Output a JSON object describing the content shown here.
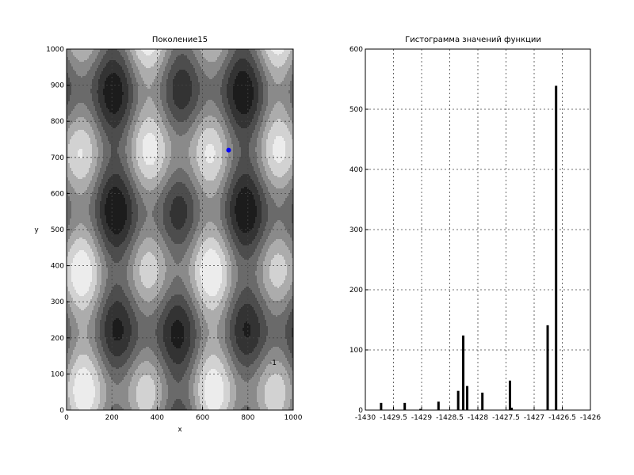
{
  "chart_data": [
    {
      "type": "heatmap",
      "title": "Поколение15",
      "xlabel": "x",
      "ylabel": "y",
      "xlim": [
        0,
        1000
      ],
      "ylim": [
        0,
        1000
      ],
      "x_ticks": [
        0,
        200,
        400,
        600,
        800,
        1000
      ],
      "y_ticks": [
        0,
        100,
        200,
        300,
        400,
        500,
        600,
        700,
        800,
        900,
        1000
      ],
      "x_tick_labels": [
        "0",
        "200",
        "400",
        "600",
        "800",
        "1000"
      ],
      "y_tick_labels": [
        "0",
        "100",
        "200",
        "300",
        "400",
        "500",
        "600",
        "700",
        "800",
        "900",
        "1000"
      ],
      "grid": true,
      "contour_levels": 7,
      "colormap": "gray",
      "point": {
        "x": 715,
        "y": 720,
        "color": "#0000ff"
      },
      "annotation": {
        "text": "-1",
        "x": 895,
        "y": 125
      }
    },
    {
      "type": "bar",
      "title": "Гистограмма значений функции",
      "xlim": [
        -1430,
        -1426
      ],
      "ylim": [
        0,
        600
      ],
      "x_ticks": [
        -1430,
        -1429.5,
        -1429,
        -1428.5,
        -1428,
        -1427.5,
        -1427,
        -1426.5,
        -1426
      ],
      "x_tick_labels": [
        "-1430",
        "-1429.5",
        "-1429",
        "-1428.5",
        "-1428",
        "-1427.5",
        "-1427",
        "-1426.5",
        "-1426"
      ],
      "y_ticks": [
        0,
        100,
        200,
        300,
        400,
        500,
        600
      ],
      "y_tick_labels": [
        "0",
        "100",
        "200",
        "300",
        "400",
        "500",
        "600"
      ],
      "grid": true,
      "bar_color": "#000000",
      "bins": [
        {
          "x": -1429.72,
          "value": 12
        },
        {
          "x": -1429.3,
          "value": 12
        },
        {
          "x": -1429.02,
          "value": 2
        },
        {
          "x": -1428.7,
          "value": 14
        },
        {
          "x": -1428.35,
          "value": 32
        },
        {
          "x": -1428.26,
          "value": 124
        },
        {
          "x": -1428.19,
          "value": 40
        },
        {
          "x": -1427.92,
          "value": 29
        },
        {
          "x": -1427.43,
          "value": 49
        },
        {
          "x": -1427.4,
          "value": 4
        },
        {
          "x": -1426.76,
          "value": 141
        },
        {
          "x": -1426.61,
          "value": 539
        }
      ]
    }
  ]
}
